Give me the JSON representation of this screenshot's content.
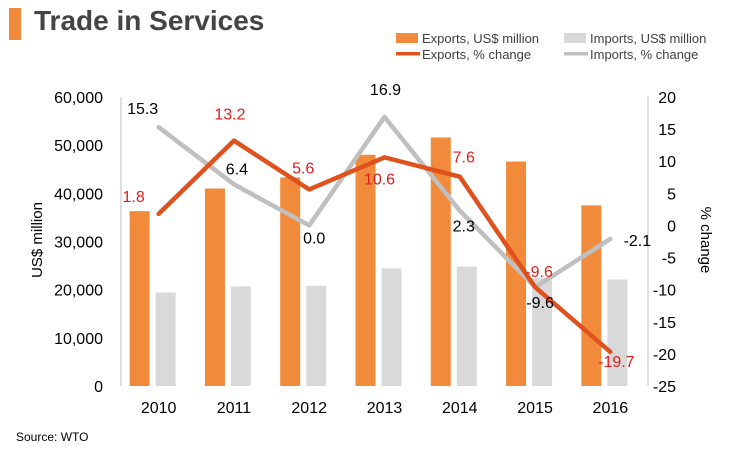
{
  "header": {
    "title": "Trade in Services",
    "accent_color": "#f28a3c"
  },
  "source": "Source: WTO",
  "colors": {
    "exports_bar": "#f28a3c",
    "imports_bar": "#d9d9d9",
    "exports_line": "#e0521d",
    "imports_line": "#bfbfbf",
    "exports_label": "#e01d1d",
    "imports_label": "#000000"
  },
  "chart_data": {
    "type": "bar",
    "title": "Trade in Services",
    "categories": [
      "2010",
      "2011",
      "2012",
      "2013",
      "2014",
      "2015",
      "2016"
    ],
    "series": [
      {
        "name": "Exports, US$ million",
        "kind": "bar",
        "axis": "left",
        "values": [
          36300,
          41000,
          43300,
          48000,
          51600,
          46600,
          37500
        ]
      },
      {
        "name": "Imports, US$ million",
        "kind": "bar",
        "axis": "left",
        "values": [
          19400,
          20700,
          20800,
          24400,
          24800,
          22500,
          22100
        ]
      },
      {
        "name": "Exports, % change",
        "kind": "line",
        "axis": "right",
        "values": [
          1.8,
          13.2,
          5.6,
          10.6,
          7.6,
          -9.6,
          -19.7
        ],
        "labels": [
          "1.8",
          "13.2",
          "5.6",
          "10.6",
          "7.6",
          "-9.6",
          "-19.7"
        ]
      },
      {
        "name": "Imports, % change",
        "kind": "line",
        "axis": "right",
        "values": [
          15.3,
          6.4,
          0.0,
          16.9,
          2.3,
          -9.6,
          -2.1
        ],
        "labels": [
          "15.3",
          "6.4",
          "0.0",
          "16.9",
          "2.3",
          "-9.6",
          "-2.1"
        ]
      }
    ],
    "ylabel": "US$ million",
    "y2label": "% change",
    "ylim": [
      0,
      60000
    ],
    "y2lim": [
      -25,
      20
    ],
    "yticks": [
      "0",
      "10,000",
      "20,000",
      "30,000",
      "40,000",
      "50,000",
      "60,000"
    ],
    "ytick_values": [
      0,
      10000,
      20000,
      30000,
      40000,
      50000,
      60000
    ],
    "y2ticks": [
      "-25",
      "-20",
      "-15",
      "-10",
      "-5",
      "0",
      "5",
      "10",
      "15",
      "20"
    ],
    "y2tick_values": [
      -25,
      -20,
      -15,
      -10,
      -5,
      0,
      5,
      10,
      15,
      20
    ],
    "legend_position": "top-right",
    "grid": false
  }
}
